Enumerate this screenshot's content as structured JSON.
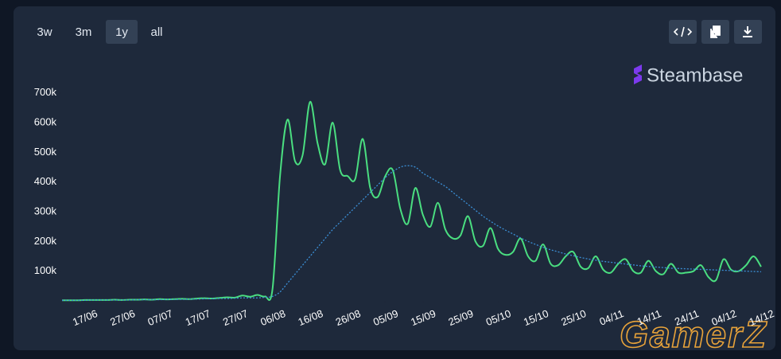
{
  "toolbar": {
    "ranges": [
      "3w",
      "3m",
      "1y",
      "all"
    ],
    "active": 2
  },
  "brand": "Steambase",
  "watermark": "GamerZ",
  "chart_data": {
    "type": "line",
    "x": [
      null,
      null,
      null,
      "17/06",
      null,
      null,
      null,
      null,
      "27/06",
      null,
      null,
      null,
      null,
      "07/07",
      null,
      null,
      null,
      null,
      "17/07",
      null,
      null,
      null,
      null,
      "27/07",
      null,
      null,
      null,
      null,
      "06/08",
      null,
      null,
      null,
      null,
      "16/08",
      null,
      null,
      null,
      null,
      "26/08",
      null,
      null,
      null,
      null,
      "05/09",
      null,
      null,
      null,
      null,
      "15/09",
      null,
      null,
      null,
      null,
      "25/09",
      null,
      null,
      null,
      null,
      "05/10",
      null,
      null,
      null,
      null,
      "15/10",
      null,
      null,
      null,
      null,
      "25/10",
      null,
      null,
      null,
      null,
      "04/11",
      null,
      null,
      null,
      null,
      "14/11",
      null,
      null,
      null,
      null,
      "24/11",
      null,
      null,
      null,
      null,
      "04/12",
      null,
      null,
      null,
      null,
      "14/12"
    ],
    "series": [
      {
        "color": "#4ade80",
        "style": "solid",
        "values": [
          2000,
          2000,
          2000,
          3000,
          3000,
          3000,
          3000,
          4000,
          3000,
          4000,
          4000,
          5000,
          4000,
          6000,
          5000,
          6000,
          7000,
          6000,
          8000,
          9000,
          8000,
          10000,
          12000,
          11000,
          18000,
          14000,
          20000,
          15000,
          40000,
          420000,
          610000,
          470000,
          490000,
          670000,
          530000,
          460000,
          600000,
          440000,
          420000,
          410000,
          545000,
          380000,
          350000,
          420000,
          440000,
          310000,
          260000,
          380000,
          290000,
          250000,
          330000,
          240000,
          210000,
          220000,
          285000,
          200000,
          185000,
          245000,
          175000,
          155000,
          165000,
          210000,
          150000,
          135000,
          190000,
          125000,
          120000,
          150000,
          165000,
          115000,
          110000,
          150000,
          105000,
          95000,
          125000,
          140000,
          100000,
          95000,
          135000,
          100000,
          90000,
          125000,
          95000,
          95000,
          100000,
          120000,
          80000,
          70000,
          140000,
          105000,
          100000,
          120000,
          150000,
          115000
        ]
      },
      {
        "color": "#3b8fd6",
        "style": "dotted",
        "values": [
          2000,
          2000,
          2000,
          2000,
          3000,
          3000,
          3000,
          3000,
          3000,
          3000,
          4000,
          4000,
          4000,
          4000,
          5000,
          5000,
          5000,
          6000,
          6000,
          7000,
          7000,
          8000,
          8000,
          9000,
          10000,
          10000,
          10000,
          12000,
          15000,
          30000,
          60000,
          90000,
          120000,
          150000,
          180000,
          210000,
          240000,
          265000,
          290000,
          315000,
          340000,
          365000,
          390000,
          415000,
          435000,
          450000,
          455000,
          450000,
          430000,
          415000,
          400000,
          385000,
          365000,
          345000,
          325000,
          305000,
          285000,
          268000,
          252000,
          238000,
          225000,
          212000,
          200000,
          190000,
          180000,
          172000,
          165000,
          158000,
          152000,
          146000,
          141000,
          137000,
          133000,
          130000,
          127000,
          124000,
          121000,
          118000,
          116000,
          114000,
          112000,
          110000,
          109000,
          108000,
          107000,
          106000,
          105000,
          104000,
          103000,
          102000,
          101000,
          100000,
          99000,
          98000
        ]
      }
    ],
    "ylim": [
      0,
      750000
    ],
    "yticks": [
      {
        "value": 100000,
        "label": "100k"
      },
      {
        "value": 200000,
        "label": "200k"
      },
      {
        "value": 300000,
        "label": "300k"
      },
      {
        "value": 400000,
        "label": "400k"
      },
      {
        "value": 500000,
        "label": "500k"
      },
      {
        "value": 600000,
        "label": "600k"
      },
      {
        "value": 700000,
        "label": "700k"
      }
    ],
    "grid": false
  }
}
